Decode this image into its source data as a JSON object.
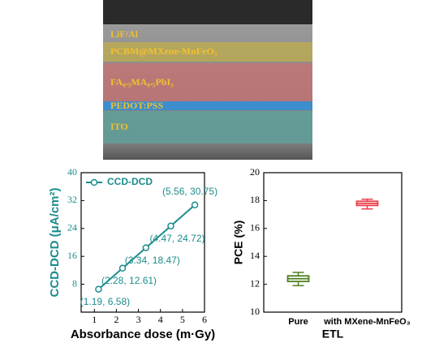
{
  "image": {
    "labels": [
      "LiF/Al",
      "PCBM@MXene-MnFeO₃",
      "FA₀.₅MA₀.₅PbI₃",
      "PEDOT:PSS",
      "ITO"
    ]
  },
  "chart_data": [
    {
      "type": "line",
      "xlabel": "Absorbance dose (m·Gy)",
      "ylabel": "CCD-DCD (μA/cm²)",
      "x": [
        1.19,
        2.28,
        3.34,
        4.47,
        5.56
      ],
      "series": [
        {
          "name": "CCD-DCD",
          "color": "#1b8c8c",
          "values": [
            6.58,
            12.61,
            18.47,
            24.72,
            30.75
          ],
          "value_labels": [
            "(1.19, 6.58)",
            "(2.28, 12.61)",
            "(3.34, 18.47)",
            "(4.47, 24.72)",
            "(5.56, 30.75)"
          ]
        }
      ],
      "xlim": [
        0.4,
        6
      ],
      "xticks": [
        1,
        2,
        3,
        4,
        5,
        6
      ],
      "ylim": [
        0,
        40
      ],
      "yticks": [
        8,
        16,
        24,
        32,
        40
      ],
      "legend": "upper-left"
    },
    {
      "type": "box",
      "xlabel": "ETL",
      "ylabel": "PCE (%)",
      "categories": [
        "Pure",
        "with MXene-MnFeO₃"
      ],
      "boxes": [
        {
          "whisker_low": 11.9,
          "q1": 12.2,
          "median": 12.4,
          "q3": 12.6,
          "whisker_high": 12.85,
          "color": "#4f7f1f"
        },
        {
          "whisker_low": 17.4,
          "q1": 17.65,
          "median": 17.8,
          "q3": 17.95,
          "whisker_high": 18.1,
          "color": "#e8404a"
        }
      ],
      "ylim": [
        10,
        20
      ],
      "yticks": [
        10,
        12,
        14,
        16,
        18,
        20
      ]
    }
  ]
}
